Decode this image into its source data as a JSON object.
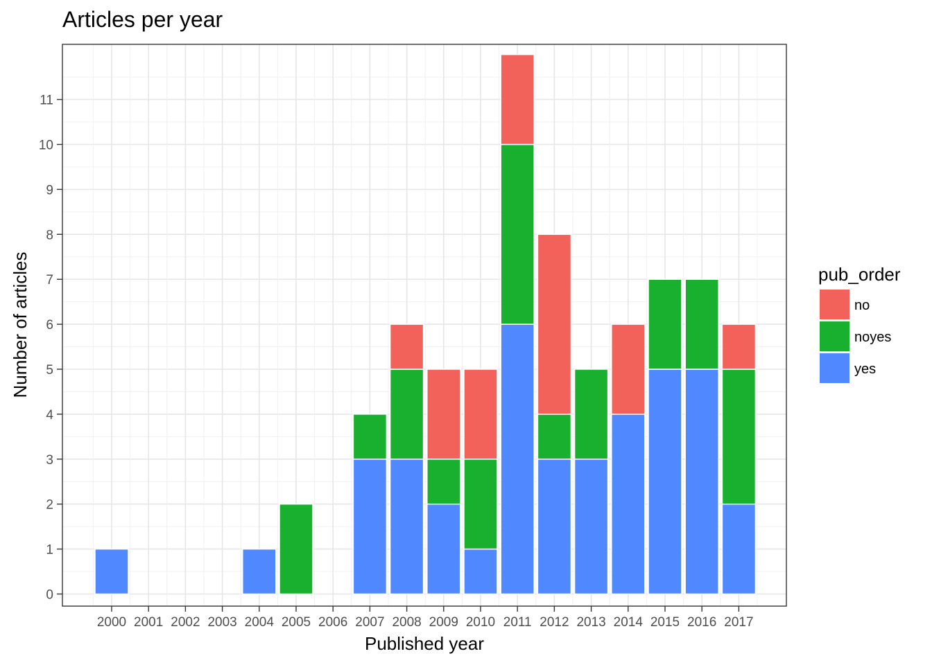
{
  "chart_data": {
    "type": "bar",
    "stacked": true,
    "title": "Articles per year",
    "xlabel": "Published year",
    "ylabel": "Number of articles",
    "categories": [
      "2000",
      "2001",
      "2002",
      "2003",
      "2004",
      "2005",
      "2006",
      "2007",
      "2008",
      "2009",
      "2010",
      "2011",
      "2012",
      "2013",
      "2014",
      "2015",
      "2016",
      "2017"
    ],
    "ylim": [
      0,
      12
    ],
    "yticks": [
      "0",
      "1",
      "2",
      "3",
      "4",
      "5",
      "6",
      "7",
      "8",
      "9",
      "10",
      "11"
    ],
    "grid": true,
    "legend": {
      "title": "pub_order",
      "position": "right"
    },
    "series": [
      {
        "name": "yes",
        "color": "#4f88ff",
        "values": [
          1,
          0,
          0,
          0,
          1,
          0,
          0,
          3,
          3,
          2,
          1,
          6,
          3,
          3,
          4,
          5,
          5,
          2
        ]
      },
      {
        "name": "noyes",
        "color": "#19b02f",
        "values": [
          0,
          0,
          0,
          0,
          0,
          2,
          0,
          1,
          2,
          1,
          2,
          4,
          1,
          2,
          0,
          2,
          2,
          3
        ]
      },
      {
        "name": "no",
        "color": "#f2625b",
        "values": [
          0,
          0,
          0,
          0,
          0,
          0,
          0,
          0,
          1,
          2,
          2,
          2,
          4,
          0,
          2,
          0,
          0,
          1
        ]
      }
    ],
    "legend_order": [
      "no",
      "noyes",
      "yes"
    ]
  }
}
